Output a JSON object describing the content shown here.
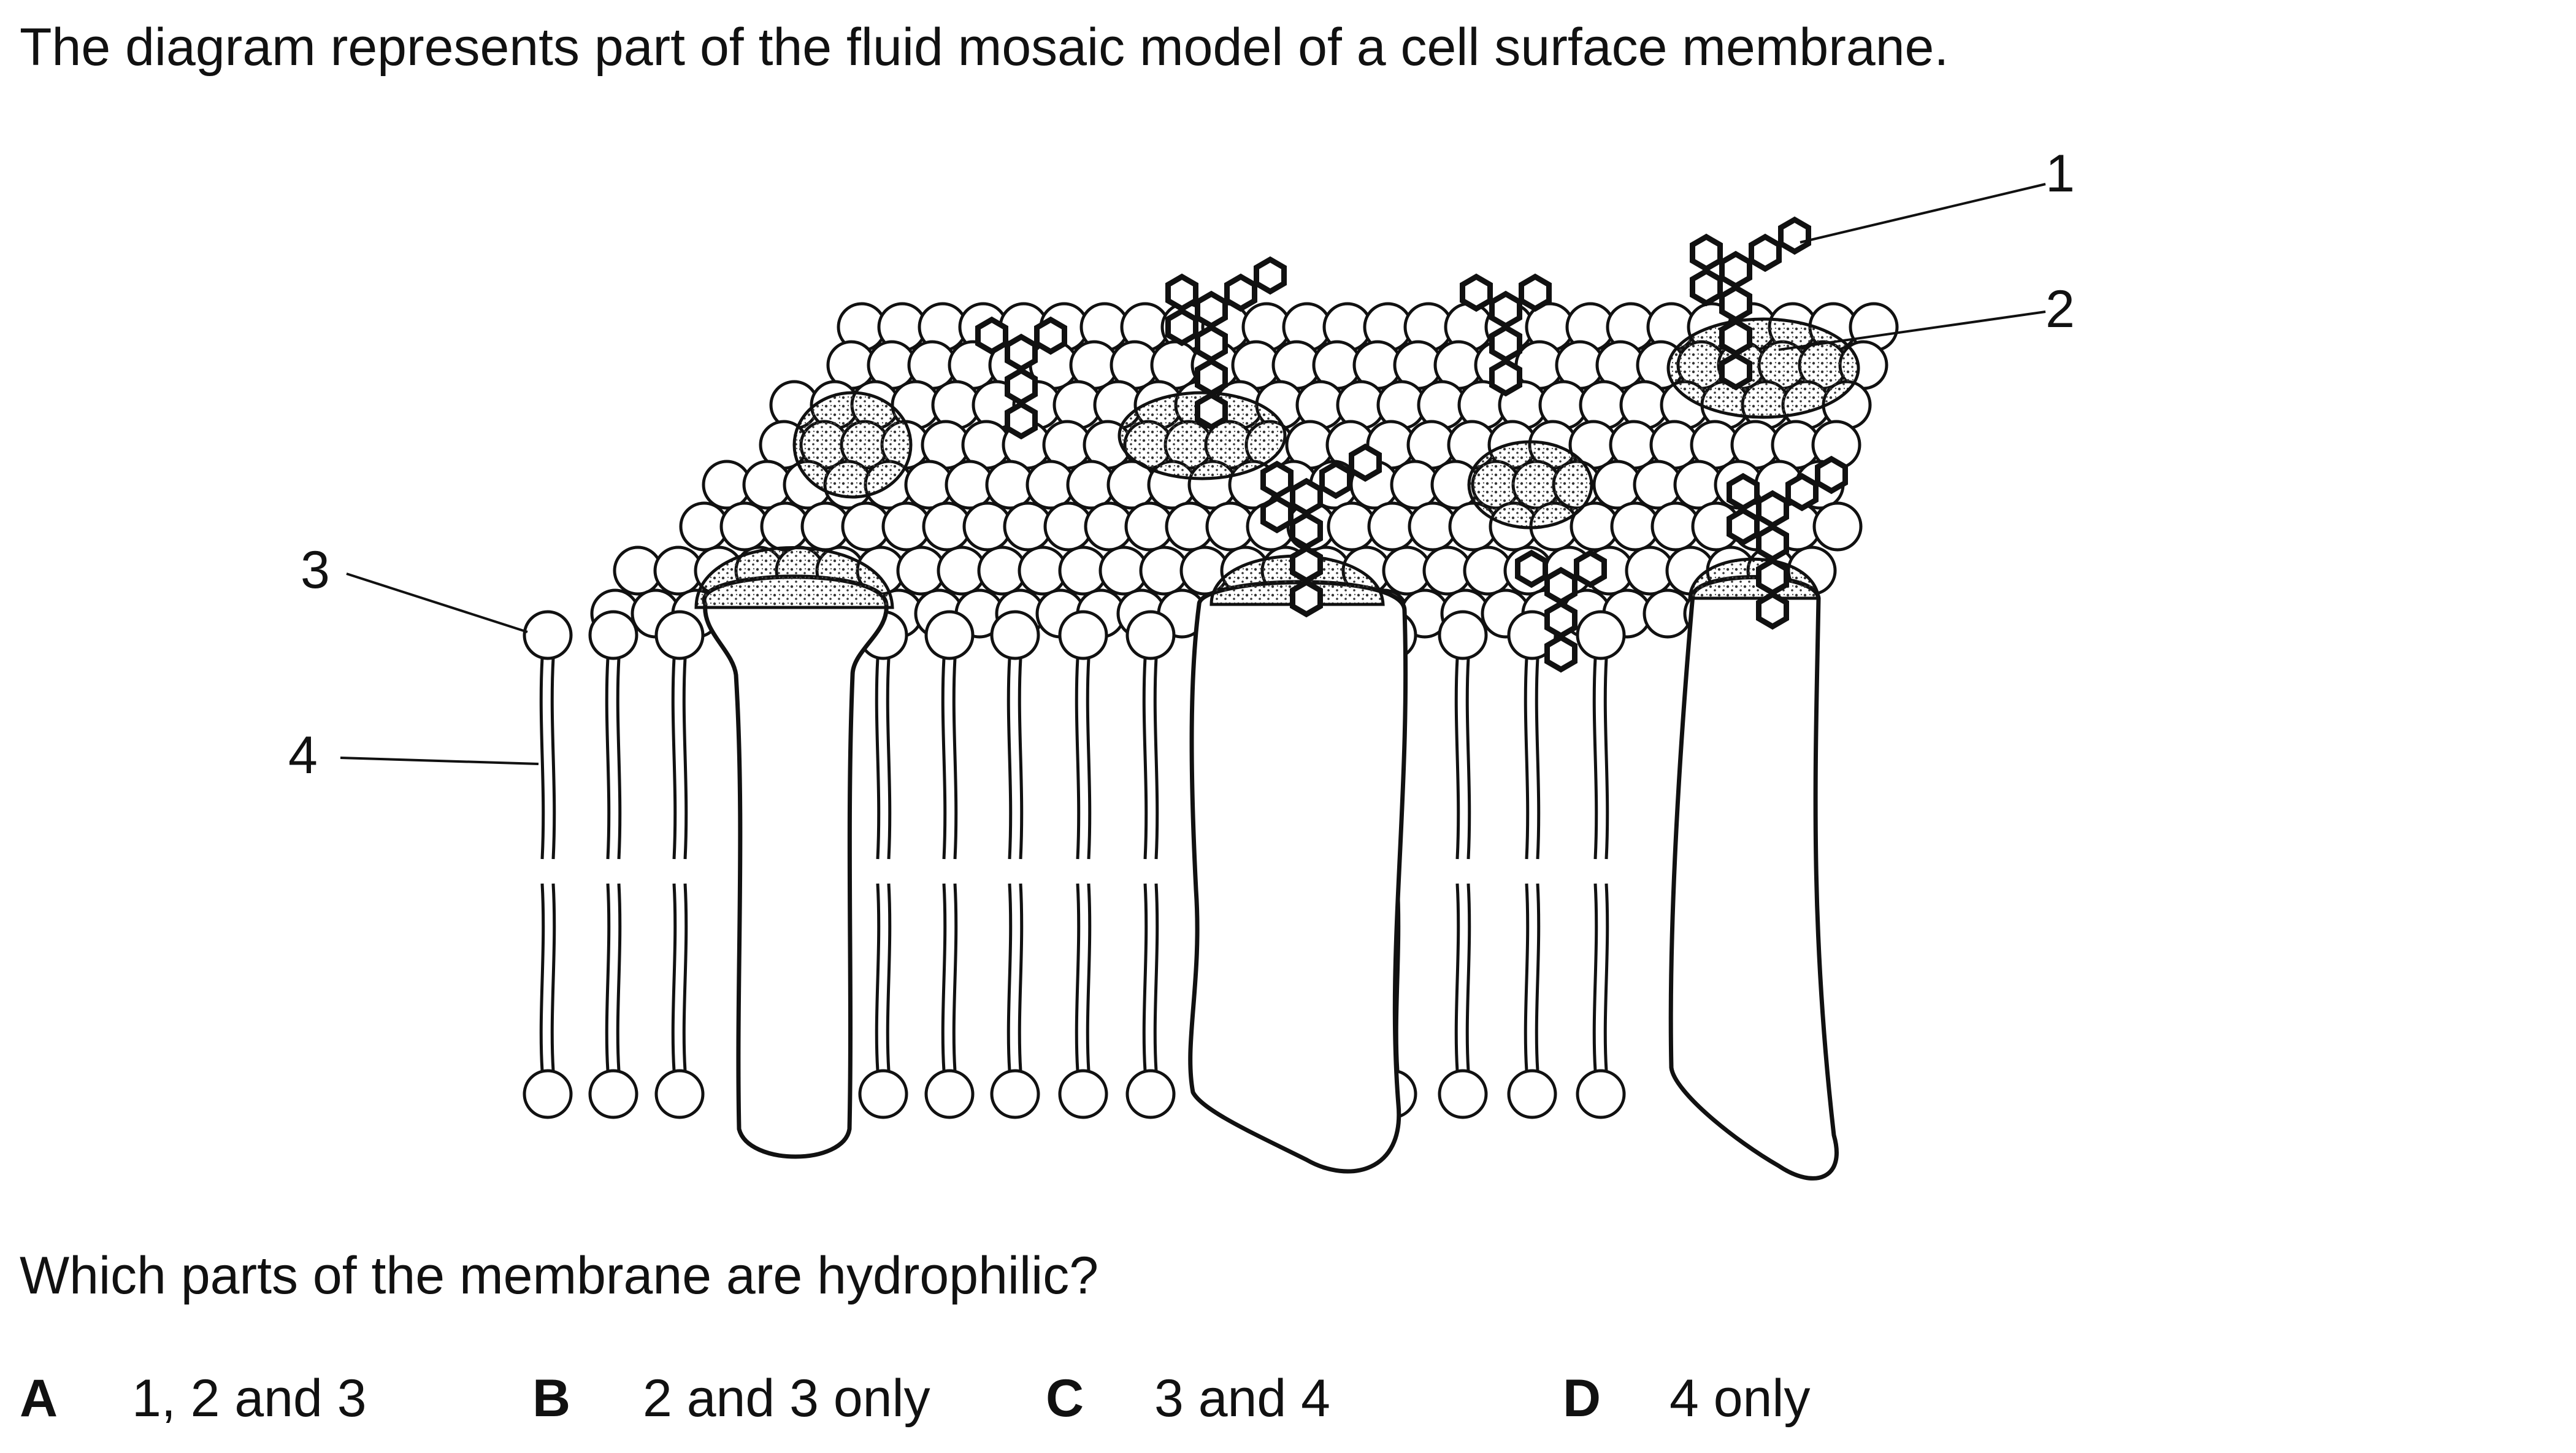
{
  "intro": "The diagram represents part of the fluid mosaic model of a cell surface membrane.",
  "question": "Which parts of the membrane are hydrophilic?",
  "labels": [
    "1",
    "2",
    "3",
    "4"
  ],
  "options": [
    {
      "letter": "A",
      "text": "1, 2 and 3"
    },
    {
      "letter": "B",
      "text": "2 and 3 only"
    },
    {
      "letter": "C",
      "text": "3 and 4"
    },
    {
      "letter": "D",
      "text": "4 only"
    }
  ]
}
